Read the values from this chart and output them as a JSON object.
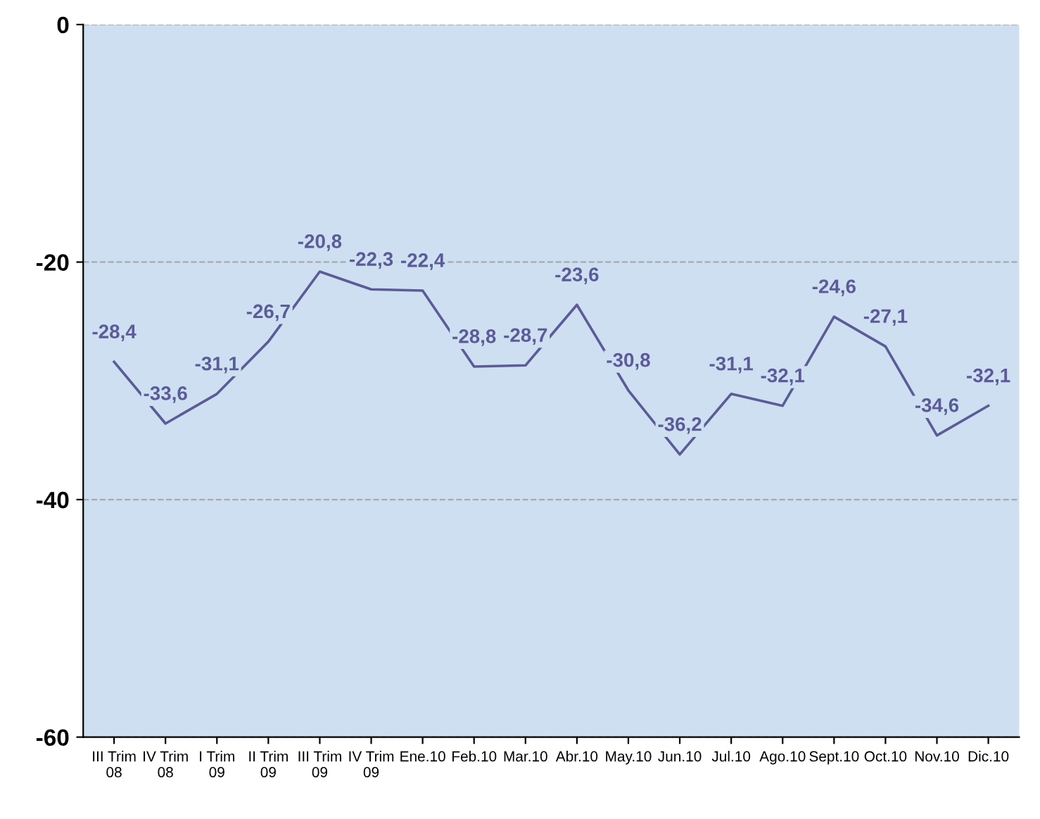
{
  "chart_data": {
    "type": "line",
    "categories": [
      "III Trim\n08",
      "IV Trim\n08",
      "I Trim\n09",
      "II Trim\n09",
      "III Trim\n09",
      "IV Trim\n09",
      "Ene.10",
      "Feb.10",
      "Mar.10",
      "Abr.10",
      "May.10",
      "Jun.10",
      "Jul.10",
      "Ago.10",
      "Sept.10",
      "Oct.10",
      "Nov.10",
      "Dic.10"
    ],
    "series": [
      {
        "color": "#5b5b97",
        "values": [
          -28.4,
          -33.6,
          -31.1,
          -26.7,
          -20.8,
          -22.3,
          -22.4,
          -28.8,
          -28.7,
          -23.6,
          -30.8,
          -36.2,
          -31.1,
          -32.1,
          -24.6,
          -27.1,
          -34.6,
          -32.1
        ],
        "value_labels": [
          "-28,4",
          "-33,6",
          "-31,1",
          "-26,7",
          "-20,8",
          "-22,3",
          "-22,4",
          "-28,8",
          "-28,7",
          "-23,6",
          "-30,8",
          "-36,2",
          "-31,1",
          "-32,1",
          "-24,6",
          "-27,1",
          "-34,6",
          "-32,1"
        ]
      }
    ],
    "ylim": [
      -60,
      0
    ],
    "yticks": [
      -60,
      -40,
      -20,
      0
    ],
    "grid": "y",
    "marker": "none",
    "line_style": "solid",
    "legend": false
  }
}
